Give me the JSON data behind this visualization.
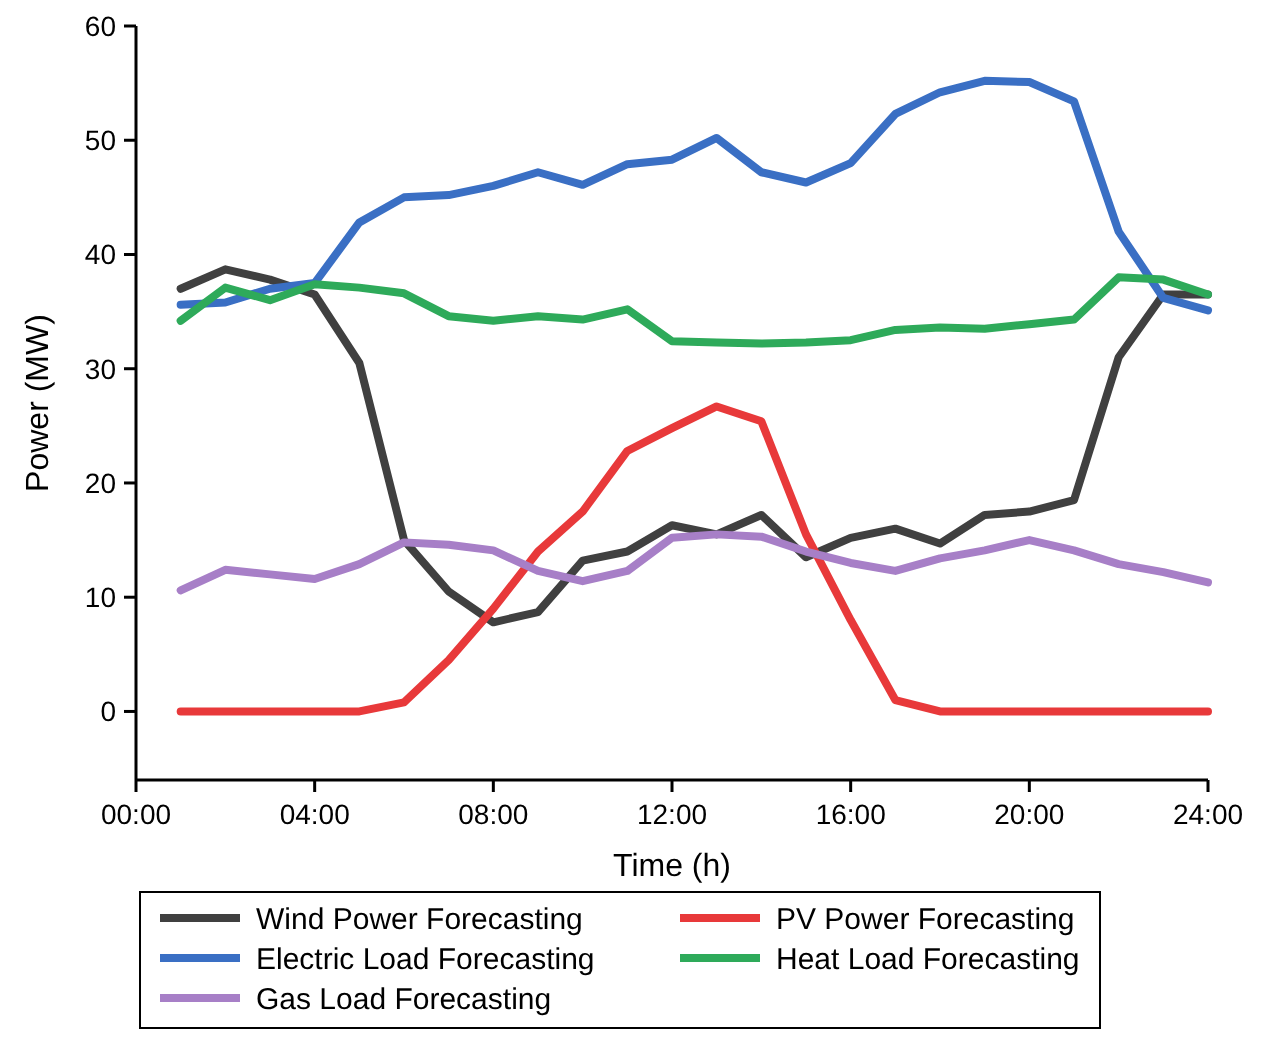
{
  "chart_data": {
    "type": "line",
    "xlabel": "Time (h)",
    "ylabel": "Power (MW)",
    "x": [
      1,
      2,
      3,
      4,
      5,
      6,
      7,
      8,
      9,
      10,
      11,
      12,
      13,
      14,
      15,
      16,
      17,
      18,
      19,
      20,
      21,
      22,
      23,
      24
    ],
    "xlim": [
      0,
      24
    ],
    "xticks": [
      {
        "value": 0,
        "label": "00:00"
      },
      {
        "value": 4,
        "label": "04:00"
      },
      {
        "value": 8,
        "label": "08:00"
      },
      {
        "value": 12,
        "label": "12:00"
      },
      {
        "value": 16,
        "label": "16:00"
      },
      {
        "value": 20,
        "label": "20:00"
      },
      {
        "value": 24,
        "label": "24:00"
      }
    ],
    "ylim": [
      -6,
      60
    ],
    "yticks": [
      0,
      10,
      20,
      30,
      40,
      50,
      60
    ],
    "grid": false,
    "legend": "bottom",
    "marker": "none",
    "line_style": "solid",
    "series": [
      {
        "name": "Wind Power Forecasting",
        "color": "#404040",
        "values": [
          37,
          38.7,
          37.8,
          36.5,
          30.5,
          15,
          10.5,
          7.8,
          8.7,
          13.2,
          14,
          16.3,
          15.5,
          17.2,
          13.5,
          15.2,
          16,
          14.7,
          17.2,
          17.5,
          18.5,
          31,
          36.5,
          36.5
        ]
      },
      {
        "name": "PV Power Forecasting",
        "color": "#e8393a",
        "values": [
          0,
          0,
          0,
          0,
          0,
          0.8,
          4.5,
          9,
          14,
          17.5,
          22.8,
          24.8,
          26.7,
          25.4,
          15.5,
          8,
          1,
          0,
          0,
          0,
          0,
          0,
          0,
          0
        ]
      },
      {
        "name": "Electric Load Forecasting",
        "color": "#3a6fc4",
        "values": [
          35.6,
          35.8,
          37,
          37.5,
          42.8,
          45,
          45.2,
          46,
          47.2,
          46.1,
          47.9,
          48.3,
          50.2,
          47.2,
          46.3,
          48,
          52.3,
          54.2,
          55.2,
          55.1,
          53.4,
          42,
          36.2,
          35.1
        ]
      },
      {
        "name": "Heat Load Forecasting",
        "color": "#2eaa5a",
        "values": [
          34.2,
          37.1,
          36,
          37.4,
          37.1,
          36.6,
          34.6,
          34.2,
          34.6,
          34.3,
          35.2,
          32.4,
          32.3,
          32.2,
          32.3,
          32.5,
          33.4,
          33.6,
          33.5,
          33.9,
          34.3,
          38,
          37.8,
          36.5
        ]
      },
      {
        "name": "Gas Load Forecasting",
        "color": "#a77fc7",
        "values": [
          10.6,
          12.4,
          12,
          11.6,
          12.9,
          14.8,
          14.6,
          14.1,
          12.3,
          11.4,
          12.3,
          15.2,
          15.5,
          15.3,
          14,
          13,
          12.3,
          13.4,
          14.1,
          15,
          14.1,
          12.9,
          12.2,
          11.3
        ]
      }
    ]
  }
}
